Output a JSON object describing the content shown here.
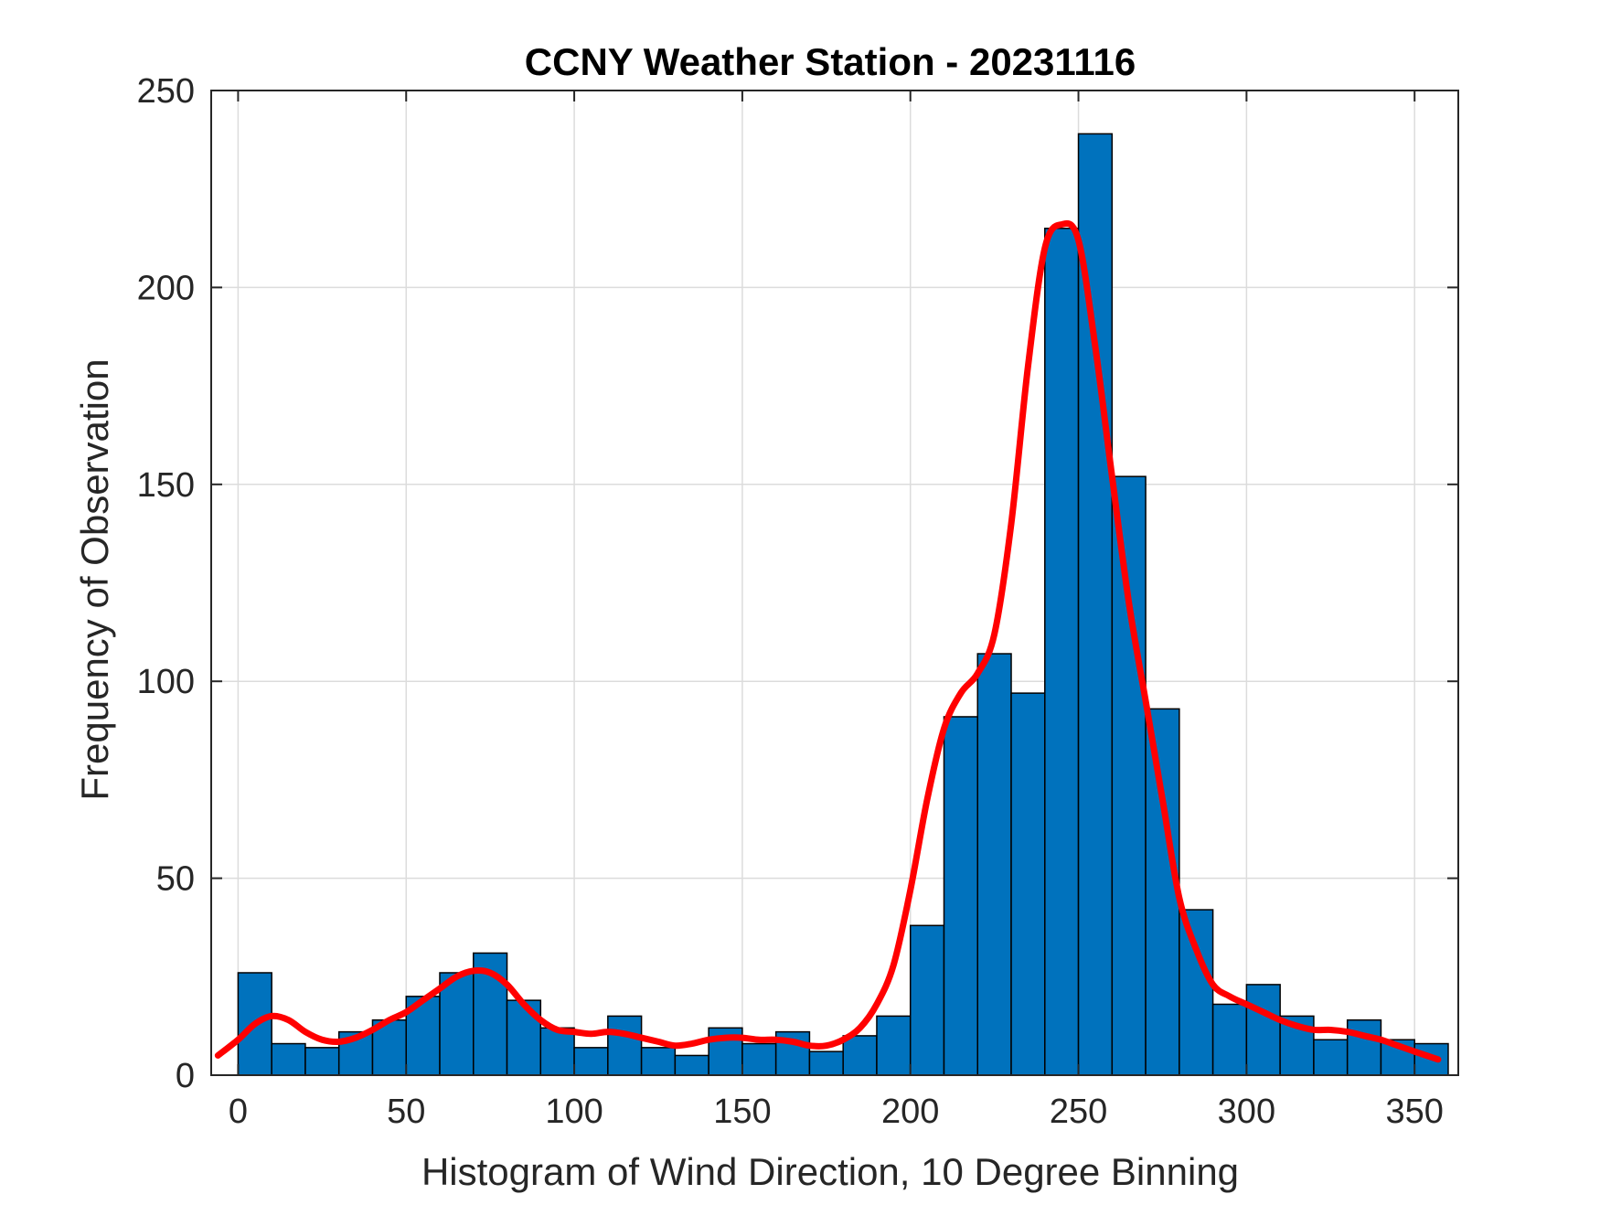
{
  "chart_data": {
    "type": "bar",
    "title": "CCNY Weather Station - 20231116",
    "xlabel": "Histogram of Wind Direction, 10 Degree Binning",
    "ylabel": "Frequency of Observation",
    "xlim": [
      -8,
      363
    ],
    "ylim": [
      0,
      250
    ],
    "xticks": [
      0,
      50,
      100,
      150,
      200,
      250,
      300,
      350
    ],
    "yticks": [
      0,
      50,
      100,
      150,
      200,
      250
    ],
    "grid": true,
    "bin_width": 10,
    "bin_edges": [
      0,
      10,
      20,
      30,
      40,
      50,
      60,
      70,
      80,
      90,
      100,
      110,
      120,
      130,
      140,
      150,
      160,
      170,
      180,
      190,
      200,
      210,
      220,
      230,
      240,
      250,
      260,
      270,
      280,
      290,
      300,
      310,
      320,
      330,
      340,
      350,
      360
    ],
    "values": [
      26,
      8,
      7,
      11,
      14,
      20,
      26,
      31,
      19,
      12,
      7,
      15,
      7,
      5,
      12,
      8,
      11,
      6,
      10,
      15,
      38,
      91,
      107,
      97,
      215,
      239,
      152,
      93,
      42,
      18,
      23,
      15,
      9,
      14,
      9,
      8
    ],
    "bar_color": "#0072BD",
    "curve_color": "#FF0000",
    "curve": {
      "x": [
        -6,
        0,
        5,
        10,
        15,
        20,
        25,
        30,
        35,
        40,
        45,
        50,
        55,
        60,
        65,
        70,
        75,
        80,
        85,
        90,
        95,
        100,
        105,
        110,
        115,
        120,
        125,
        130,
        135,
        140,
        145,
        150,
        155,
        160,
        165,
        170,
        175,
        180,
        185,
        190,
        195,
        200,
        205,
        210,
        215,
        220,
        225,
        230,
        235,
        240,
        245,
        250,
        255,
        260,
        265,
        270,
        275,
        280,
        285,
        290,
        295,
        300,
        305,
        310,
        315,
        320,
        325,
        330,
        335,
        340,
        345,
        350,
        357
      ],
      "y": [
        5,
        9,
        13,
        15,
        14,
        11,
        9,
        8.5,
        9.5,
        11.5,
        14,
        16,
        19,
        22,
        25,
        26.5,
        26,
        23,
        18,
        14,
        11.5,
        11,
        10.5,
        11,
        10.5,
        9.5,
        8.5,
        7.5,
        8,
        9,
        9.5,
        9.5,
        9,
        9,
        8.5,
        7.5,
        7.5,
        9,
        12,
        18,
        28,
        47,
        70,
        88,
        97,
        102,
        112,
        140,
        180,
        210,
        216,
        212,
        185,
        152,
        120,
        95,
        70,
        45,
        32,
        23,
        20,
        18,
        16,
        14,
        12.5,
        11.5,
        11.5,
        11,
        10,
        9,
        7.5,
        6,
        4
      ]
    }
  }
}
